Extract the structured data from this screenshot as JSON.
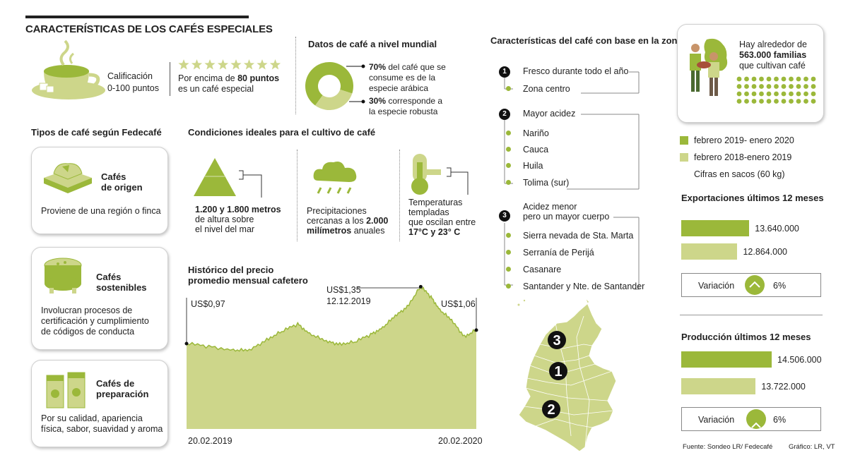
{
  "title": "CARACTERÍSTICAS DE LOS CAFÉS ESPECIALES",
  "calificacion": {
    "label": "Calificación",
    "range": "0-100 puntos",
    "stars": 8,
    "desc_pre": "Por encima de ",
    "desc_bold": "80 puntos",
    "desc_post": "es un café especial"
  },
  "mundial": {
    "title": "Datos de café a nivel mundial",
    "arabica_pct": 70,
    "robusta_pct": 30,
    "arabica_bold": "70%",
    "arabica_text": " del café que se",
    "arabica_line2": "consume es de la",
    "arabica_line3": "especie arábica",
    "robusta_bold": "30%",
    "robusta_text": " corresponde a",
    "robusta_line2": "la especie robusta"
  },
  "tipos": {
    "title": "Tipos de café según Fedecafé",
    "items": [
      {
        "name_l1": "Cafés",
        "name_l2": "de origen",
        "desc_l1": "Proviene de una región o finca",
        "desc_l2": "",
        "desc_l3": ""
      },
      {
        "name_l1": "Cafés",
        "name_l2": "sostenibles",
        "desc_l1": "Involucran procesos de",
        "desc_l2": "certificación y cumplimiento",
        "desc_l3": "de códigos de conducta"
      },
      {
        "name_l1": "Cafés de",
        "name_l2": "preparación",
        "desc_l1": "Por su calidad, apariencia",
        "desc_l2": "física, sabor, suavidad y aroma",
        "desc_l3": ""
      }
    ]
  },
  "condiciones": {
    "title": "Condiciones ideales para el cultivo de café",
    "altura_l1": "1.200 y 1.800 metros",
    "altura_l2": "de altura sobre",
    "altura_l3": "el nivel del mar",
    "precip_l1": "Precipitaciones",
    "precip_l2": "cercanas a los ",
    "precip_l2b": "2.000",
    "precip_l3": "milímetros",
    "precip_l3b": " anuales",
    "temp_l1": "Temperaturas",
    "temp_l2": "templadas",
    "temp_l3": "que oscilan entre",
    "temp_l4": "17°C y 23° C"
  },
  "historico": {
    "title_l1": "Histórico del precio",
    "title_l2": "promedio mensual cafetero",
    "start_label": "US$0,97",
    "peak_label": "US$1,35",
    "peak_date": "12.12.2019",
    "end_label": "US$1,06",
    "x_start": "20.02.2019",
    "x_end": "20.02.2020"
  },
  "zona": {
    "title": "Características del café con base en la zona",
    "groups": [
      {
        "num": "1",
        "title": "Fresco durante todo el año",
        "title2": "",
        "items": [
          "Zona centro"
        ]
      },
      {
        "num": "2",
        "title": "Mayor acidez",
        "title2": "",
        "items": [
          "Nariño",
          "Cauca",
          "Huila",
          "Tolima (sur)"
        ]
      },
      {
        "num": "3",
        "title": "Acidez menor",
        "title2": "pero un mayor cuerpo",
        "items": [
          "Sierra nevada de Sta. Marta",
          "Serranía de Perijá",
          "Casanare",
          "Santander y Nte. de Santander"
        ]
      }
    ],
    "map_labels": [
      "3",
      "1",
      "2"
    ]
  },
  "familias": {
    "l1": "Hay alrededor de",
    "l2": "563.000 familias",
    "l3": "que cultivan café"
  },
  "legend": {
    "series1": "febrero 2019- enero 2020",
    "series2": "febrero 2018-enero 2019",
    "units": "Cifras en sacos (60 kg)"
  },
  "colors": {
    "dark_green": "#9bb83a",
    "light_green": "#cdd68a",
    "gray_text": "#222222"
  },
  "chart_data": [
    {
      "type": "bar",
      "title": "Exportaciones últimos 12 meses",
      "series": [
        {
          "name": "febrero 2019- enero 2020",
          "value": 13640000,
          "label": "13.640.000"
        },
        {
          "name": "febrero 2018-enero 2019",
          "value": 12864000,
          "label": "12.864.000"
        }
      ],
      "variation_label": "Variación",
      "variation": "6%",
      "variation_direction": "up"
    },
    {
      "type": "bar",
      "title": "Producción últimos 12 meses",
      "series": [
        {
          "name": "febrero 2019- enero 2020",
          "value": 14506000,
          "label": "14.506.000"
        },
        {
          "name": "febrero 2018-enero 2019",
          "value": 13722000,
          "label": "13.722.000"
        }
      ],
      "variation_label": "Variación",
      "variation": "6%",
      "variation_direction": "up"
    },
    {
      "type": "pie",
      "title": "Datos de café a nivel mundial",
      "slices": [
        {
          "label": "arábica",
          "value": 70
        },
        {
          "label": "robusta",
          "value": 30
        }
      ]
    },
    {
      "type": "area",
      "title": "Histórico del precio promedio mensual cafetero",
      "x_range": [
        "20.02.2019",
        "20.02.2020"
      ],
      "y_unit": "US$",
      "points": [
        {
          "x": "2019-02-20",
          "y": 0.97
        },
        {
          "x": "2019-03-20",
          "y": 0.95
        },
        {
          "x": "2019-04-20",
          "y": 0.93
        },
        {
          "x": "2019-05-10",
          "y": 0.92
        },
        {
          "x": "2019-06-01",
          "y": 1.0
        },
        {
          "x": "2019-06-20",
          "y": 1.05
        },
        {
          "x": "2019-07-10",
          "y": 1.1
        },
        {
          "x": "2019-07-25",
          "y": 1.04
        },
        {
          "x": "2019-08-15",
          "y": 0.98
        },
        {
          "x": "2019-09-01",
          "y": 0.97
        },
        {
          "x": "2019-09-20",
          "y": 0.98
        },
        {
          "x": "2019-10-10",
          "y": 1.03
        },
        {
          "x": "2019-10-25",
          "y": 1.08
        },
        {
          "x": "2019-11-10",
          "y": 1.15
        },
        {
          "x": "2019-11-25",
          "y": 1.22
        },
        {
          "x": "2019-12-12",
          "y": 1.35
        },
        {
          "x": "2019-12-25",
          "y": 1.28
        },
        {
          "x": "2020-01-05",
          "y": 1.2
        },
        {
          "x": "2020-01-20",
          "y": 1.12
        },
        {
          "x": "2020-02-05",
          "y": 1.02
        },
        {
          "x": "2020-02-20",
          "y": 1.06
        }
      ],
      "annotations": [
        {
          "x": "2019-02-20",
          "label": "US$0,97"
        },
        {
          "x": "2019-12-12",
          "label": "US$1,35",
          "sub": "12.12.2019"
        },
        {
          "x": "2020-02-20",
          "label": "US$1,06"
        }
      ]
    }
  ],
  "footer": {
    "source": "Fuente: Sondeo LR/ Fedecafé",
    "credit": "Gráfico: LR, VT"
  }
}
